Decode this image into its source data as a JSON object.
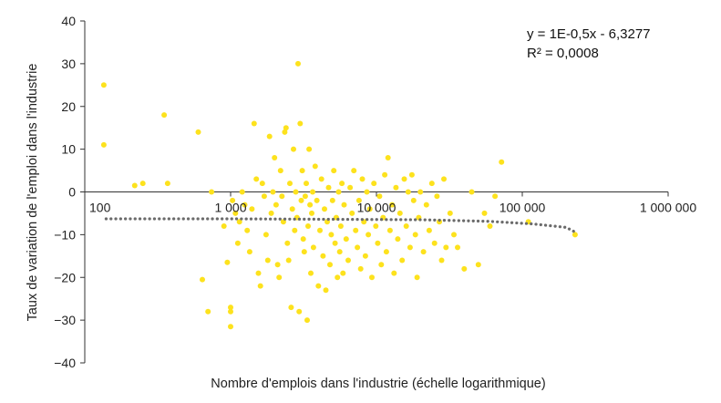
{
  "chart_data": {
    "type": "scatter",
    "title": "",
    "xlabel": "Nombre d'emplois dans l'industrie (échelle logarithmique)",
    "ylabel": "Taux de variation de l'emploi dans l'industrie",
    "x_scale": "log",
    "xlim": [
      100,
      1000000
    ],
    "ylim": [
      -40,
      40
    ],
    "x_ticks": [
      100,
      1000,
      10000,
      100000,
      1000000
    ],
    "x_tick_labels": [
      "100",
      "1 000",
      "10 000",
      "100 000",
      "1 000 000"
    ],
    "y_ticks": [
      40,
      30,
      20,
      10,
      0,
      -10,
      -20,
      -30,
      -40
    ],
    "y_tick_labels": [
      "40",
      "30",
      "20",
      "10",
      "0",
      "−10",
      "−20",
      "−30",
      "−40"
    ],
    "grid": false,
    "legend": "none",
    "equation_lines": [
      "y = 1E-0,5x  - 6,3277",
      "R² = 0,0008"
    ],
    "colors": {
      "points": "#fde21d",
      "trendline": "#6b6b6b",
      "axis": "#333333"
    },
    "trendline": {
      "style": "dotted",
      "x": [
        140,
        1000,
        5000,
        20000,
        60000,
        120000,
        200000,
        240000
      ],
      "y": [
        -6.3,
        -6.3,
        -6.4,
        -6.5,
        -6.9,
        -7.5,
        -8.3,
        -9.7
      ]
    },
    "series": [
      {
        "values": [
          [
            135,
            25
          ],
          [
            135,
            11
          ],
          [
            220,
            1.5
          ],
          [
            250,
            2
          ],
          [
            350,
            18
          ],
          [
            370,
            2
          ],
          [
            600,
            14
          ],
          [
            640,
            -20.5
          ],
          [
            700,
            -28
          ],
          [
            740,
            0
          ],
          [
            900,
            -8
          ],
          [
            950,
            -16.5
          ],
          [
            1000,
            -27
          ],
          [
            1000,
            -28
          ],
          [
            1000,
            -31.5
          ],
          [
            1030,
            -2
          ],
          [
            1080,
            -5
          ],
          [
            1120,
            -12
          ],
          [
            1150,
            -7
          ],
          [
            1200,
            0
          ],
          [
            1250,
            -3
          ],
          [
            1300,
            -9
          ],
          [
            1350,
            -14
          ],
          [
            1400,
            -4
          ],
          [
            1450,
            16
          ],
          [
            1500,
            3
          ],
          [
            1550,
            -19
          ],
          [
            1600,
            -22
          ],
          [
            1650,
            2
          ],
          [
            1700,
            -1
          ],
          [
            1750,
            -10
          ],
          [
            1800,
            -16
          ],
          [
            1850,
            13
          ],
          [
            1900,
            -5
          ],
          [
            1950,
            0
          ],
          [
            2000,
            8
          ],
          [
            2050,
            -3
          ],
          [
            2100,
            -17
          ],
          [
            2150,
            -20
          ],
          [
            2200,
            5
          ],
          [
            2250,
            -1
          ],
          [
            2300,
            -7
          ],
          [
            2350,
            14
          ],
          [
            2400,
            15
          ],
          [
            2450,
            -12
          ],
          [
            2500,
            -16
          ],
          [
            2550,
            2
          ],
          [
            2600,
            -27
          ],
          [
            2650,
            -4
          ],
          [
            2700,
            10
          ],
          [
            2750,
            -9
          ],
          [
            2800,
            0
          ],
          [
            2850,
            -6
          ],
          [
            2900,
            30
          ],
          [
            2950,
            -28
          ],
          [
            3000,
            16
          ],
          [
            3050,
            -2
          ],
          [
            3100,
            5
          ],
          [
            3150,
            -11
          ],
          [
            3200,
            -14
          ],
          [
            3250,
            -1
          ],
          [
            3300,
            2
          ],
          [
            3350,
            -30
          ],
          [
            3400,
            -8
          ],
          [
            3450,
            10
          ],
          [
            3500,
            -3
          ],
          [
            3550,
            -19
          ],
          [
            3600,
            -5
          ],
          [
            3650,
            0
          ],
          [
            3700,
            -13
          ],
          [
            3800,
            6
          ],
          [
            3900,
            -2
          ],
          [
            4000,
            -22
          ],
          [
            4100,
            -9
          ],
          [
            4200,
            3
          ],
          [
            4300,
            -15
          ],
          [
            4400,
            -4
          ],
          [
            4500,
            -23
          ],
          [
            4600,
            -7
          ],
          [
            4700,
            1
          ],
          [
            4800,
            -17
          ],
          [
            4900,
            -10
          ],
          [
            5000,
            -2
          ],
          [
            5100,
            5
          ],
          [
            5200,
            -12
          ],
          [
            5300,
            -6
          ],
          [
            5400,
            -20
          ],
          [
            5500,
            0
          ],
          [
            5600,
            -14
          ],
          [
            5700,
            -8
          ],
          [
            5800,
            2
          ],
          [
            5900,
            -19
          ],
          [
            6000,
            -3
          ],
          [
            6200,
            -11
          ],
          [
            6400,
            -16
          ],
          [
            6600,
            1
          ],
          [
            6800,
            -5
          ],
          [
            7000,
            5
          ],
          [
            7200,
            -9
          ],
          [
            7400,
            -13
          ],
          [
            7600,
            -2
          ],
          [
            7800,
            -18
          ],
          [
            8000,
            3
          ],
          [
            8200,
            -7
          ],
          [
            8400,
            -15
          ],
          [
            8600,
            0
          ],
          [
            8800,
            -10
          ],
          [
            9000,
            -4
          ],
          [
            9300,
            -20
          ],
          [
            9600,
            2
          ],
          [
            9900,
            -8
          ],
          [
            10200,
            -12
          ],
          [
            10500,
            -1
          ],
          [
            10800,
            -17
          ],
          [
            11100,
            -6
          ],
          [
            11400,
            4
          ],
          [
            11700,
            -14
          ],
          [
            12000,
            8
          ],
          [
            12400,
            -9
          ],
          [
            12800,
            -3
          ],
          [
            13200,
            -19
          ],
          [
            13600,
            1
          ],
          [
            14000,
            -11
          ],
          [
            14500,
            -5
          ],
          [
            15000,
            -16
          ],
          [
            15500,
            3
          ],
          [
            16000,
            -8
          ],
          [
            16500,
            0
          ],
          [
            17000,
            -13
          ],
          [
            17500,
            4
          ],
          [
            18000,
            -2
          ],
          [
            18500,
            -10
          ],
          [
            19000,
            -20
          ],
          [
            19500,
            -6
          ],
          [
            20000,
            0
          ],
          [
            21000,
            -14
          ],
          [
            22000,
            -3
          ],
          [
            23000,
            -9
          ],
          [
            24000,
            2
          ],
          [
            25000,
            -12
          ],
          [
            26000,
            -1
          ],
          [
            27000,
            -7
          ],
          [
            28000,
            -16
          ],
          [
            29000,
            3
          ],
          [
            30000,
            -13
          ],
          [
            32000,
            -5
          ],
          [
            34000,
            -10
          ],
          [
            36000,
            -13
          ],
          [
            40000,
            -18
          ],
          [
            45000,
            0
          ],
          [
            50000,
            -17
          ],
          [
            55000,
            -5
          ],
          [
            60000,
            -8
          ],
          [
            65000,
            -1
          ],
          [
            72000,
            7
          ],
          [
            110000,
            -7
          ],
          [
            230000,
            -10
          ]
        ]
      }
    ]
  }
}
